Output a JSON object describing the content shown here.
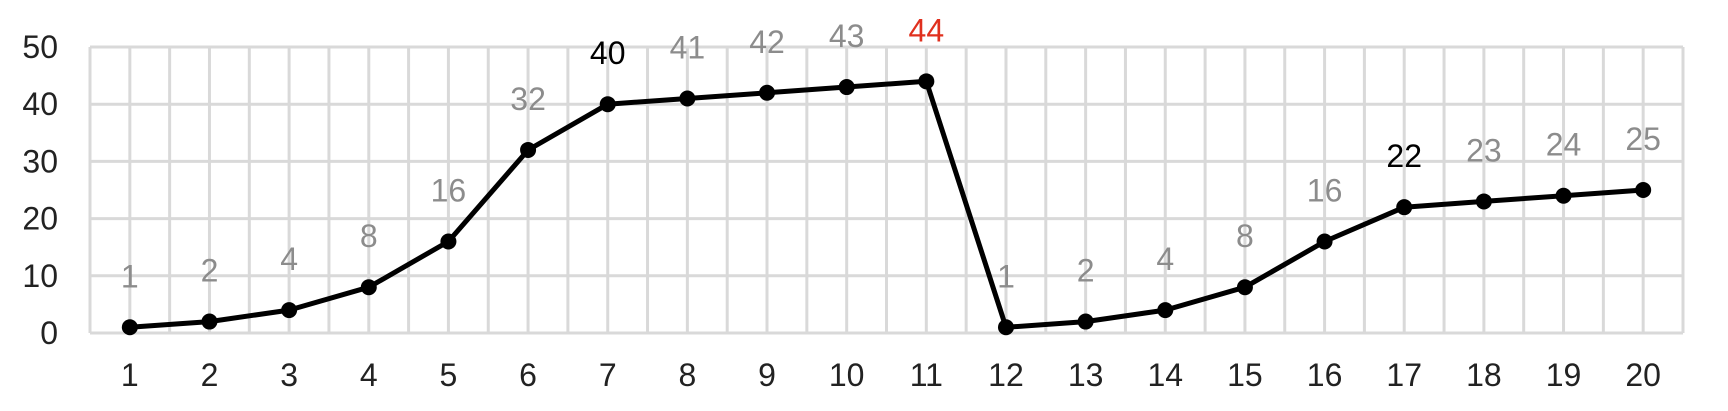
{
  "chart_data": {
    "type": "line",
    "categories": [
      "1",
      "2",
      "3",
      "4",
      "5",
      "6",
      "7",
      "8",
      "9",
      "10",
      "11",
      "12",
      "13",
      "14",
      "15",
      "16",
      "17",
      "18",
      "19",
      "20"
    ],
    "values": [
      1,
      2,
      4,
      8,
      16,
      32,
      40,
      41,
      42,
      43,
      44,
      1,
      2,
      4,
      8,
      16,
      22,
      23,
      24,
      25
    ],
    "data_labels": [
      "1",
      "2",
      "4",
      "8",
      "16",
      "32",
      "40",
      "41",
      "42",
      "43",
      "44",
      "1",
      "2",
      "4",
      "8",
      "16",
      "22",
      "23",
      "24",
      "25"
    ],
    "data_label_colors": [
      "#8c8c8c",
      "#8c8c8c",
      "#8c8c8c",
      "#8c8c8c",
      "#8c8c8c",
      "#8c8c8c",
      "#000000",
      "#8c8c8c",
      "#8c8c8c",
      "#8c8c8c",
      "#e0301e",
      "#8c8c8c",
      "#8c8c8c",
      "#8c8c8c",
      "#8c8c8c",
      "#8c8c8c",
      "#000000",
      "#8c8c8c",
      "#8c8c8c",
      "#8c8c8c"
    ],
    "y_ticks": [
      0,
      10,
      20,
      30,
      40,
      50
    ],
    "ylim": [
      0,
      50
    ],
    "grid": true,
    "line_color": "#000000",
    "grid_color": "#d9d9d9"
  }
}
